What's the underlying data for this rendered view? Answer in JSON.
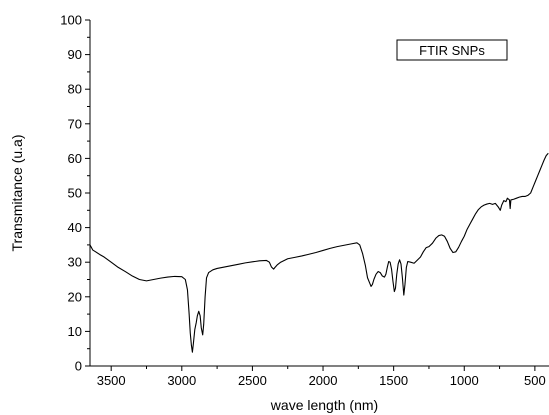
{
  "chart_data": {
    "type": "line",
    "title": "",
    "xlabel": "wave length (nm)",
    "ylabel": "Transmitance (u.a)",
    "xlim": [
      3650,
      400
    ],
    "ylim": [
      0,
      100
    ],
    "x_ticks": [
      3500,
      3000,
      2500,
      2000,
      1500,
      1000,
      500
    ],
    "y_ticks": [
      0,
      10,
      20,
      30,
      40,
      50,
      60,
      70,
      80,
      90,
      100
    ],
    "grid": false,
    "legend": {
      "placement": "top-right",
      "entries": [
        "FTIR SNPs"
      ]
    },
    "series": [
      {
        "name": "FTIR SNPs",
        "color": "#000000",
        "points": [
          [
            3650,
            35.0
          ],
          [
            3630,
            33.5
          ],
          [
            3610,
            33.0
          ],
          [
            3580,
            32.2
          ],
          [
            3550,
            31.5
          ],
          [
            3500,
            30.0
          ],
          [
            3450,
            28.5
          ],
          [
            3400,
            27.3
          ],
          [
            3350,
            26.0
          ],
          [
            3300,
            25.0
          ],
          [
            3250,
            24.6
          ],
          [
            3200,
            25.0
          ],
          [
            3150,
            25.4
          ],
          [
            3100,
            25.7
          ],
          [
            3050,
            25.9
          ],
          [
            3000,
            25.8
          ],
          [
            2975,
            25.0
          ],
          [
            2960,
            22.0
          ],
          [
            2948,
            15.0
          ],
          [
            2940,
            9.5
          ],
          [
            2932,
            6.0
          ],
          [
            2925,
            4.0
          ],
          [
            2918,
            6.5
          ],
          [
            2908,
            10.5
          ],
          [
            2898,
            12.5
          ],
          [
            2890,
            14.5
          ],
          [
            2880,
            15.8
          ],
          [
            2870,
            14.5
          ],
          [
            2862,
            11.0
          ],
          [
            2852,
            9.0
          ],
          [
            2845,
            12.0
          ],
          [
            2835,
            20.0
          ],
          [
            2825,
            25.5
          ],
          [
            2810,
            27.0
          ],
          [
            2780,
            27.8
          ],
          [
            2750,
            28.2
          ],
          [
            2700,
            28.6
          ],
          [
            2650,
            29.0
          ],
          [
            2600,
            29.4
          ],
          [
            2550,
            29.8
          ],
          [
            2500,
            30.1
          ],
          [
            2450,
            30.4
          ],
          [
            2400,
            30.5
          ],
          [
            2380,
            30.0
          ],
          [
            2365,
            28.6
          ],
          [
            2350,
            28.0
          ],
          [
            2340,
            28.5
          ],
          [
            2325,
            29.2
          ],
          [
            2300,
            30.0
          ],
          [
            2250,
            31.0
          ],
          [
            2200,
            31.4
          ],
          [
            2150,
            31.8
          ],
          [
            2100,
            32.3
          ],
          [
            2050,
            32.8
          ],
          [
            2000,
            33.4
          ],
          [
            1950,
            34.0
          ],
          [
            1900,
            34.5
          ],
          [
            1850,
            34.9
          ],
          [
            1800,
            35.3
          ],
          [
            1760,
            35.6
          ],
          [
            1740,
            35.0
          ],
          [
            1720,
            32.5
          ],
          [
            1700,
            29.0
          ],
          [
            1685,
            25.5
          ],
          [
            1670,
            24.0
          ],
          [
            1660,
            23.0
          ],
          [
            1650,
            23.6
          ],
          [
            1640,
            25.0
          ],
          [
            1625,
            26.5
          ],
          [
            1610,
            27.3
          ],
          [
            1595,
            27.0
          ],
          [
            1580,
            26.0
          ],
          [
            1565,
            25.7
          ],
          [
            1555,
            26.5
          ],
          [
            1545,
            28.5
          ],
          [
            1535,
            30.2
          ],
          [
            1525,
            30.0
          ],
          [
            1515,
            28.0
          ],
          [
            1505,
            24.5
          ],
          [
            1495,
            21.5
          ],
          [
            1487,
            22.5
          ],
          [
            1478,
            26.5
          ],
          [
            1468,
            29.5
          ],
          [
            1458,
            30.7
          ],
          [
            1448,
            29.5
          ],
          [
            1438,
            25.5
          ],
          [
            1428,
            20.5
          ],
          [
            1420,
            23.5
          ],
          [
            1410,
            28.5
          ],
          [
            1400,
            30.2
          ],
          [
            1380,
            30.0
          ],
          [
            1355,
            29.7
          ],
          [
            1335,
            30.5
          ],
          [
            1310,
            31.5
          ],
          [
            1290,
            33.0
          ],
          [
            1270,
            34.2
          ],
          [
            1250,
            34.5
          ],
          [
            1225,
            35.5
          ],
          [
            1200,
            37.0
          ],
          [
            1180,
            37.7
          ],
          [
            1160,
            37.9
          ],
          [
            1140,
            37.5
          ],
          [
            1120,
            36.0
          ],
          [
            1100,
            34.0
          ],
          [
            1080,
            32.8
          ],
          [
            1060,
            33.0
          ],
          [
            1040,
            34.3
          ],
          [
            1020,
            36.0
          ],
          [
            1000,
            37.5
          ],
          [
            980,
            39.5
          ],
          [
            960,
            41.0
          ],
          [
            940,
            42.5
          ],
          [
            920,
            44.0
          ],
          [
            900,
            45.2
          ],
          [
            880,
            46.0
          ],
          [
            860,
            46.5
          ],
          [
            840,
            46.8
          ],
          [
            820,
            47.0
          ],
          [
            800,
            46.7
          ],
          [
            780,
            47.0
          ],
          [
            760,
            46.0
          ],
          [
            745,
            45.0
          ],
          [
            735,
            46.5
          ],
          [
            720,
            47.8
          ],
          [
            705,
            47.5
          ],
          [
            695,
            48.5
          ],
          [
            680,
            48.0
          ],
          [
            675,
            45.5
          ],
          [
            670,
            48.0
          ],
          [
            650,
            48.2
          ],
          [
            630,
            48.5
          ],
          [
            610,
            48.8
          ],
          [
            590,
            49.0
          ],
          [
            570,
            49.0
          ],
          [
            550,
            49.3
          ],
          [
            530,
            50.0
          ],
          [
            510,
            52.0
          ],
          [
            495,
            53.5
          ],
          [
            480,
            55.0
          ],
          [
            465,
            56.5
          ],
          [
            450,
            58.0
          ],
          [
            435,
            59.5
          ],
          [
            420,
            60.8
          ],
          [
            405,
            61.5
          ]
        ]
      }
    ]
  }
}
